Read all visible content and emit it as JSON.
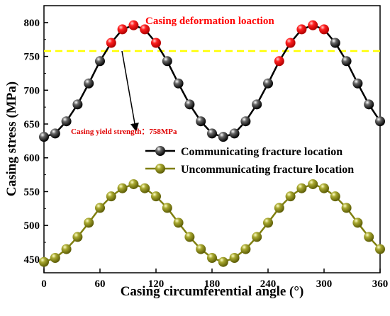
{
  "chart_data": {
    "type": "line",
    "xlabel": "Casing circumferential angle (°)",
    "ylabel": "Casing stress (MPa)",
    "xlim": [
      0,
      360
    ],
    "ylim": [
      430,
      825
    ],
    "xticks": [
      0,
      60,
      120,
      180,
      240,
      300,
      360
    ],
    "yticks": [
      450,
      500,
      550,
      600,
      650,
      700,
      750,
      800
    ],
    "x": [
      0,
      12,
      24,
      36,
      48,
      60,
      72,
      84,
      96,
      108,
      120,
      132,
      144,
      156,
      168,
      180,
      192,
      204,
      216,
      228,
      240,
      252,
      264,
      276,
      288,
      300,
      312,
      324,
      336,
      348,
      360
    ],
    "series": [
      {
        "name": "Communicating fracture location",
        "color": "#000000",
        "marker": "black-ball",
        "values": [
          631,
          636,
          654,
          679,
          710,
          743,
          770,
          790,
          796,
          790,
          770,
          743,
          710,
          679,
          654,
          636,
          631,
          636,
          654,
          679,
          710,
          743,
          770,
          790,
          796,
          790,
          770,
          743,
          710,
          679,
          654
        ],
        "highlighted_indices": [
          6,
          7,
          8,
          9,
          10,
          21,
          22,
          23,
          24,
          25
        ],
        "highlight_color": "#ff0000"
      },
      {
        "name": "Uncommunicating fracture location",
        "color": "#7f7f10",
        "marker": "olive-ball",
        "values": [
          446,
          452,
          465,
          483,
          504,
          526,
          543,
          555,
          561,
          555,
          543,
          526,
          504,
          483,
          465,
          452,
          446,
          452,
          465,
          483,
          504,
          526,
          543,
          555,
          561,
          555,
          543,
          526,
          504,
          483,
          465
        ]
      }
    ],
    "reference_line": {
      "y": 758,
      "color": "#ffff00",
      "style": "dashed"
    },
    "annotations": {
      "deformation": "Casing deformation loaction",
      "yield": "Casing yield strength：758MPa"
    },
    "legend_position": "center-right",
    "grid": false
  },
  "colors": {
    "deformation_text": "#ff0000",
    "yield_text": "#e00000"
  }
}
